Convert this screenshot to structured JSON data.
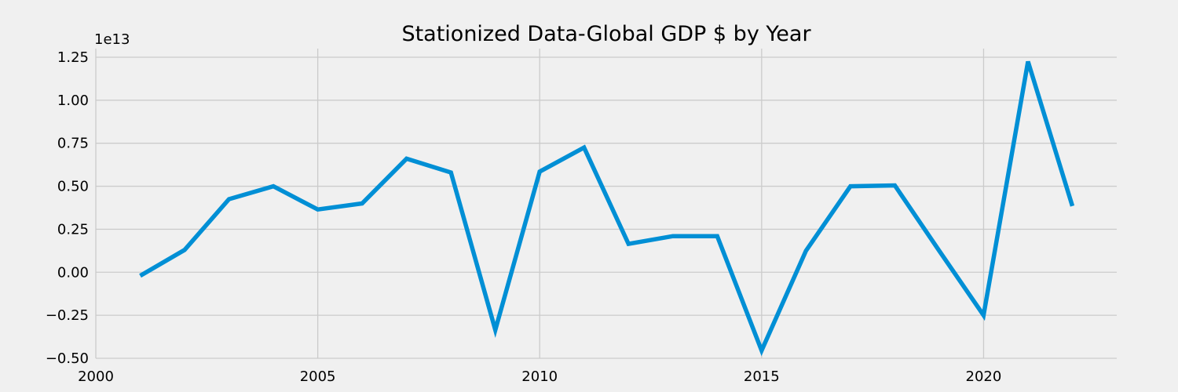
{
  "chart_data": {
    "type": "line",
    "title": "Stationized Data-Global GDP $ by Year",
    "xlabel": "",
    "ylabel": "",
    "y_offset_label": "1e13",
    "xlim": [
      2000,
      2023
    ],
    "ylim": [
      -0.5,
      1.3
    ],
    "x_ticks": [
      2000,
      2005,
      2010,
      2015,
      2020
    ],
    "x_tick_labels": [
      "2000",
      "2005",
      "2010",
      "2015",
      "2020"
    ],
    "y_ticks": [
      -0.5,
      -0.25,
      0,
      0.25,
      0.5,
      0.75,
      1.0,
      1.25
    ],
    "y_tick_labels": [
      "−0.50",
      "−0.25",
      "0.00",
      "0.25",
      "0.50",
      "0.75",
      "1.00",
      "1.25"
    ],
    "grid": true,
    "series": [
      {
        "color": "#008fd5",
        "x": [
          2001,
          2002,
          2003,
          2004,
          2005,
          2006,
          2007,
          2008,
          2009,
          2010,
          2011,
          2012,
          2013,
          2014,
          2015,
          2016,
          2017,
          2018,
          2019,
          2020,
          2021,
          2022
        ],
        "values": [
          -0.02,
          0.13,
          0.425,
          0.5,
          0.365,
          0.4,
          0.66,
          0.58,
          -0.335,
          0.585,
          0.725,
          0.165,
          0.21,
          0.21,
          -0.455,
          0.125,
          0.5,
          0.505,
          0.125,
          -0.25,
          1.225,
          0.385
        ]
      }
    ]
  }
}
